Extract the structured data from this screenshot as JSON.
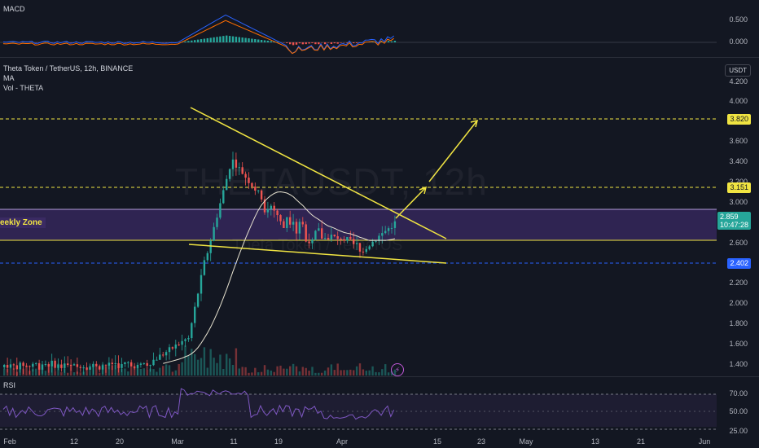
{
  "macd_pane": {
    "title": "MACD",
    "ticks": [
      "0.500",
      "0.000"
    ]
  },
  "main_pane": {
    "symbol_line": "Theta Token / TetherUS, 12h, BINANCE",
    "indicator_ma": "MA",
    "indicator_vol": "Vol - THETA",
    "currency": "USDT",
    "watermark": "THETAUSDT, 12h",
    "watermark_sub": "Theta Token / TetherUS",
    "zone_label": "eekly Zone",
    "ticks": [
      "4.200",
      "4.000",
      "3.600",
      "3.400",
      "3.200",
      "3.000",
      "2.600",
      "2.200",
      "2.000",
      "1.800",
      "1.600",
      "1.400"
    ],
    "price_tags": {
      "level_high": "3.820",
      "level_mid": "3.151",
      "current_price": "2.859",
      "countdown": "10:47:28",
      "level_low": "2.402"
    },
    "colors": {
      "up": "#26a69a",
      "down": "#ef5350",
      "trend": "#f0e442",
      "ma": "#e8e3d0",
      "zone": "#3a2a63",
      "accent": "#2962ff"
    }
  },
  "rsi_pane": {
    "title": "RSI",
    "ticks": [
      "70.00",
      "50.00",
      "25.00"
    ]
  },
  "time_axis": {
    "labels": [
      "Feb",
      "12",
      "20",
      "Mar",
      "11",
      "19",
      "Apr",
      "15",
      "23",
      "May",
      "13",
      "21",
      "Jun"
    ]
  }
}
